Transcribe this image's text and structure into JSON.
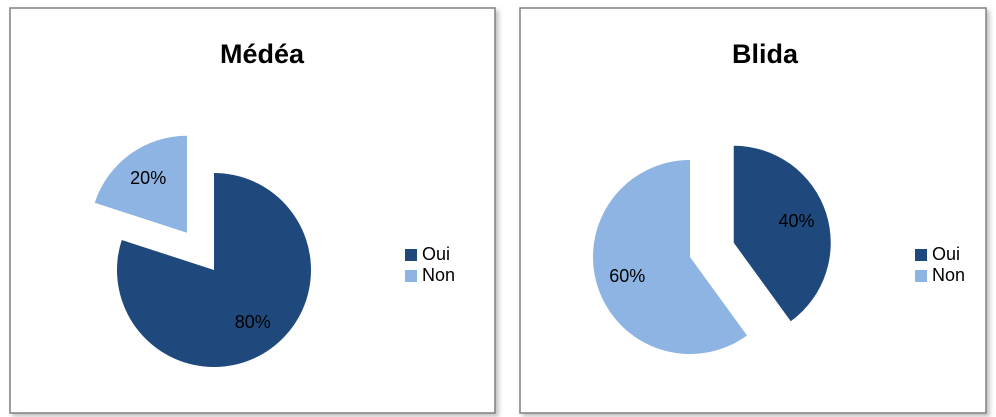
{
  "chart_data": [
    {
      "type": "pie",
      "title": "Médéa",
      "categories": [
        "Oui",
        "Non"
      ],
      "values": [
        80,
        20
      ],
      "value_labels": [
        "80%",
        "20%"
      ],
      "colors": [
        "#1f497d",
        "#8eb4e3"
      ],
      "legend": "right"
    },
    {
      "type": "pie",
      "title": "Blida",
      "categories": [
        "Oui",
        "Non"
      ],
      "values": [
        40,
        60
      ],
      "value_labels": [
        "40%",
        "60%"
      ],
      "colors": [
        "#1f497d",
        "#8eb4e3"
      ],
      "legend": "right"
    }
  ]
}
